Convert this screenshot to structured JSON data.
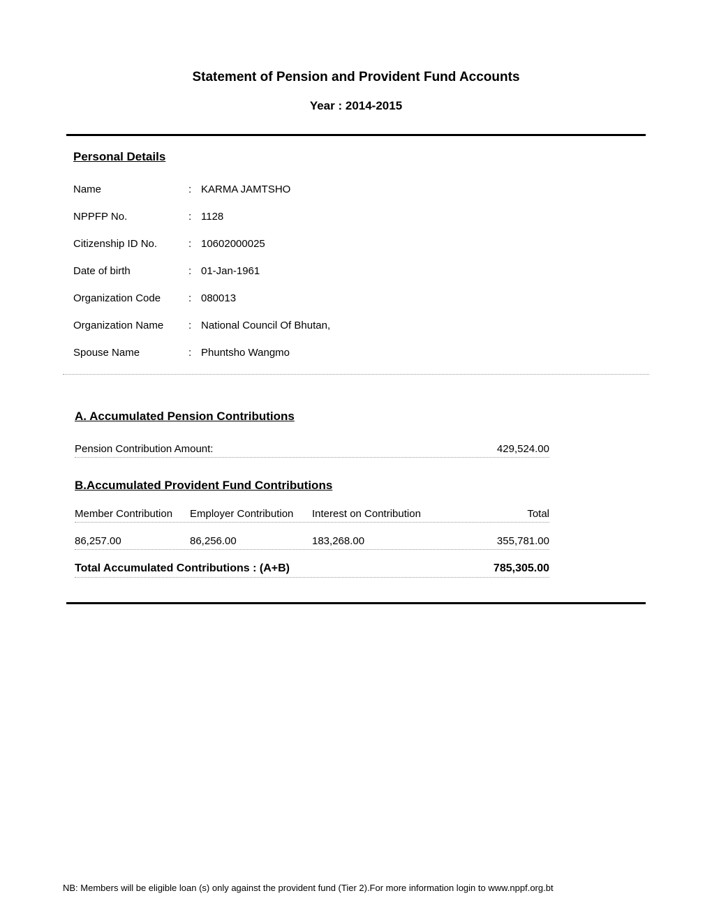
{
  "title": "Statement of Pension and Provident Fund Accounts",
  "year_label": "Year :",
  "year_value": "2014-2015",
  "personal_details": {
    "heading": "Personal Details",
    "fields": [
      {
        "label": "Name",
        "value": "KARMA JAMTSHO"
      },
      {
        "label": "NPPFP No.",
        "value": "1128"
      },
      {
        "label": "Citizenship ID No.",
        "value": "10602000025"
      },
      {
        "label": "Date of birth",
        "value": "01-Jan-1961"
      },
      {
        "label": "Organization Code",
        "value": "080013"
      },
      {
        "label": "Organization Name",
        "value": "National Council Of Bhutan,"
      },
      {
        "label": "Spouse Name",
        "value": "Phuntsho Wangmo"
      }
    ]
  },
  "accumulated_pension": {
    "heading": "A. Accumulated Pension Contributions",
    "label": "Pension Contribution Amount:",
    "amount": "429,524.00"
  },
  "provident_fund": {
    "heading": "B.Accumulated Provident Fund Contributions",
    "headers": {
      "member": "Member Contribution",
      "employer": "Employer Contribution",
      "interest": "Interest on Contribution",
      "total": "Total"
    },
    "values": {
      "member": "86,257.00",
      "employer": "86,256.00",
      "interest": "183,268.00",
      "total": "355,781.00"
    }
  },
  "total_accumulated": {
    "label": "Total Accumulated Contributions : (A+B)",
    "amount": "785,305.00"
  },
  "footer": "NB: Members will be eligible loan (s) only against the provident fund (Tier 2).For more information login to www.nppf.org.bt",
  "styling": {
    "font_family": "Arial, Helvetica, sans-serif",
    "background_color": "#ffffff",
    "text_color": "#000000",
    "thick_border_color": "#000000",
    "thick_border_width": 3,
    "dotted_border_color": "#999999",
    "title_fontsize": 19,
    "heading_fontsize": 17,
    "body_fontsize": 15,
    "footer_fontsize": 13
  }
}
